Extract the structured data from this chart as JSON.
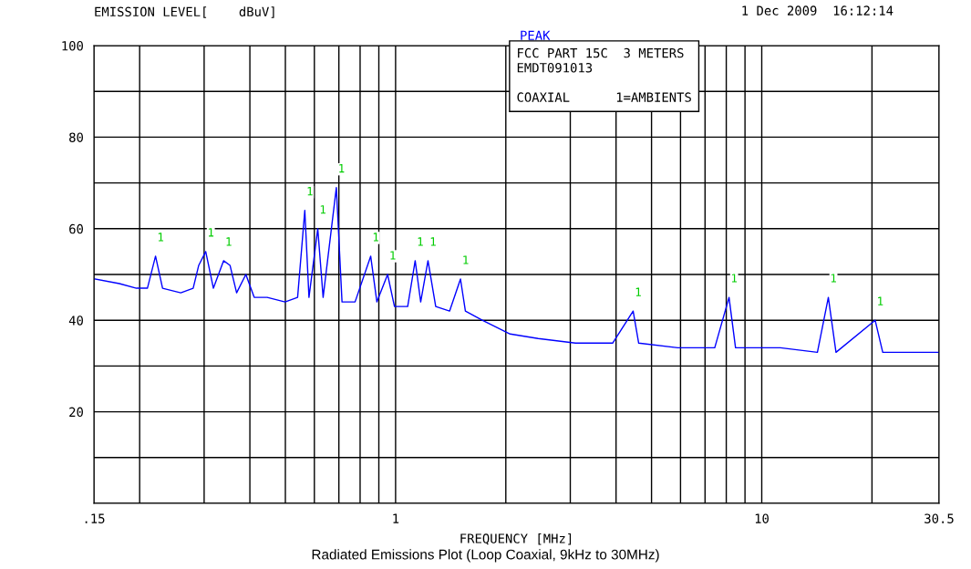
{
  "chart_data": {
    "type": "line",
    "xlabel": "FREQUENCY [MHz]",
    "ylabel": "EMISSION LEVEL[    dBuV]",
    "log": "x",
    "grid": true,
    "marker": "none",
    "line_style": "solid",
    "xlim": [
      0.15,
      30.5
    ],
    "ylim": [
      0,
      100
    ],
    "xticks": [
      {
        "value": 0.15,
        "label": ".15"
      },
      {
        "value": 0.2,
        "label": null
      },
      {
        "value": 0.3,
        "label": null
      },
      {
        "value": 0.4,
        "label": null
      },
      {
        "value": 0.5,
        "label": null
      },
      {
        "value": 0.6,
        "label": null
      },
      {
        "value": 0.7,
        "label": null
      },
      {
        "value": 0.8,
        "label": null
      },
      {
        "value": 0.9,
        "label": null
      },
      1,
      {
        "value": 2,
        "label": null
      },
      {
        "value": 3,
        "label": null
      },
      {
        "value": 4,
        "label": null
      },
      {
        "value": 5,
        "label": null
      },
      {
        "value": 6,
        "label": null
      },
      {
        "value": 7,
        "label": null
      },
      {
        "value": 8,
        "label": null
      },
      {
        "value": 9,
        "label": null
      },
      10,
      {
        "value": 20,
        "label": null
      },
      30.5
    ],
    "yticks": [
      {
        "value": 0,
        "label": null
      },
      {
        "value": 10,
        "label": null
      },
      20,
      {
        "value": 30,
        "label": null
      },
      40,
      {
        "value": 50,
        "label": null
      },
      60,
      {
        "value": 70,
        "label": null
      },
      80,
      {
        "value": 90,
        "label": null
      },
      100
    ],
    "series": [
      {
        "color": "#0000ff",
        "x": [
          0.151,
          0.176,
          0.196,
          0.21,
          0.221,
          0.231,
          0.259,
          0.28,
          0.29,
          0.303,
          0.318,
          0.339,
          0.353,
          0.368,
          0.39,
          0.411,
          0.446,
          0.499,
          0.54,
          0.565,
          0.58,
          0.613,
          0.634,
          0.689,
          0.714,
          0.775,
          0.855,
          0.889,
          0.951,
          0.993,
          1.079,
          1.131,
          1.171,
          1.226,
          1.287,
          1.404,
          1.504,
          1.551,
          1.724,
          2.055,
          2.451,
          3.099,
          3.915,
          4.454,
          4.612,
          5.899,
          7.44,
          8.14,
          8.48,
          11.24,
          14.19,
          15.2,
          15.95,
          20.4,
          21.4,
          25.5,
          30.4
        ],
        "values": [
          49,
          48,
          47,
          47,
          54,
          47,
          46,
          47,
          52,
          55,
          47,
          53,
          52,
          46,
          50,
          45,
          45,
          44,
          45,
          64,
          45,
          60,
          45,
          69,
          44,
          44,
          54,
          44,
          50,
          43,
          43,
          53,
          44,
          53,
          43,
          42,
          49,
          42,
          40,
          37,
          36,
          35,
          35,
          42,
          35,
          34,
          34,
          45,
          34,
          34,
          33,
          45,
          33,
          40,
          33,
          33,
          33
        ]
      }
    ],
    "annotations": [
      "1 Dec 2009  16:12:14",
      "PEAK",
      "FCC PART 15C  3 METERS",
      "EMDT091013",
      "COAXIAL      1=AMBIENTS",
      "Radiated Emissions Plot (Loop Coaxial, 9kHz to 30MHz)",
      {
        "text": "1",
        "x": 0.221,
        "y": 54
      },
      {
        "text": "1",
        "x": 0.303,
        "y": 55
      },
      {
        "text": "1",
        "x": 0.339,
        "y": 53
      },
      {
        "text": "1",
        "x": 0.565,
        "y": 64
      },
      {
        "text": "1",
        "x": 0.613,
        "y": 60
      },
      {
        "text": "1",
        "x": 0.689,
        "y": 69
      },
      {
        "text": "1",
        "x": 0.855,
        "y": 54
      },
      {
        "text": "1",
        "x": 0.951,
        "y": 50
      },
      {
        "text": "1",
        "x": 1.131,
        "y": 53
      },
      {
        "text": "1",
        "x": 1.226,
        "y": 53
      },
      {
        "text": "1",
        "x": 1.504,
        "y": 49
      },
      {
        "text": "1",
        "x": 4.454,
        "y": 42
      },
      {
        "text": "1",
        "x": 8.14,
        "y": 45
      },
      {
        "text": "1",
        "x": 15.2,
        "y": 45
      },
      {
        "text": "1",
        "x": 20.4,
        "y": 40
      }
    ]
  }
}
